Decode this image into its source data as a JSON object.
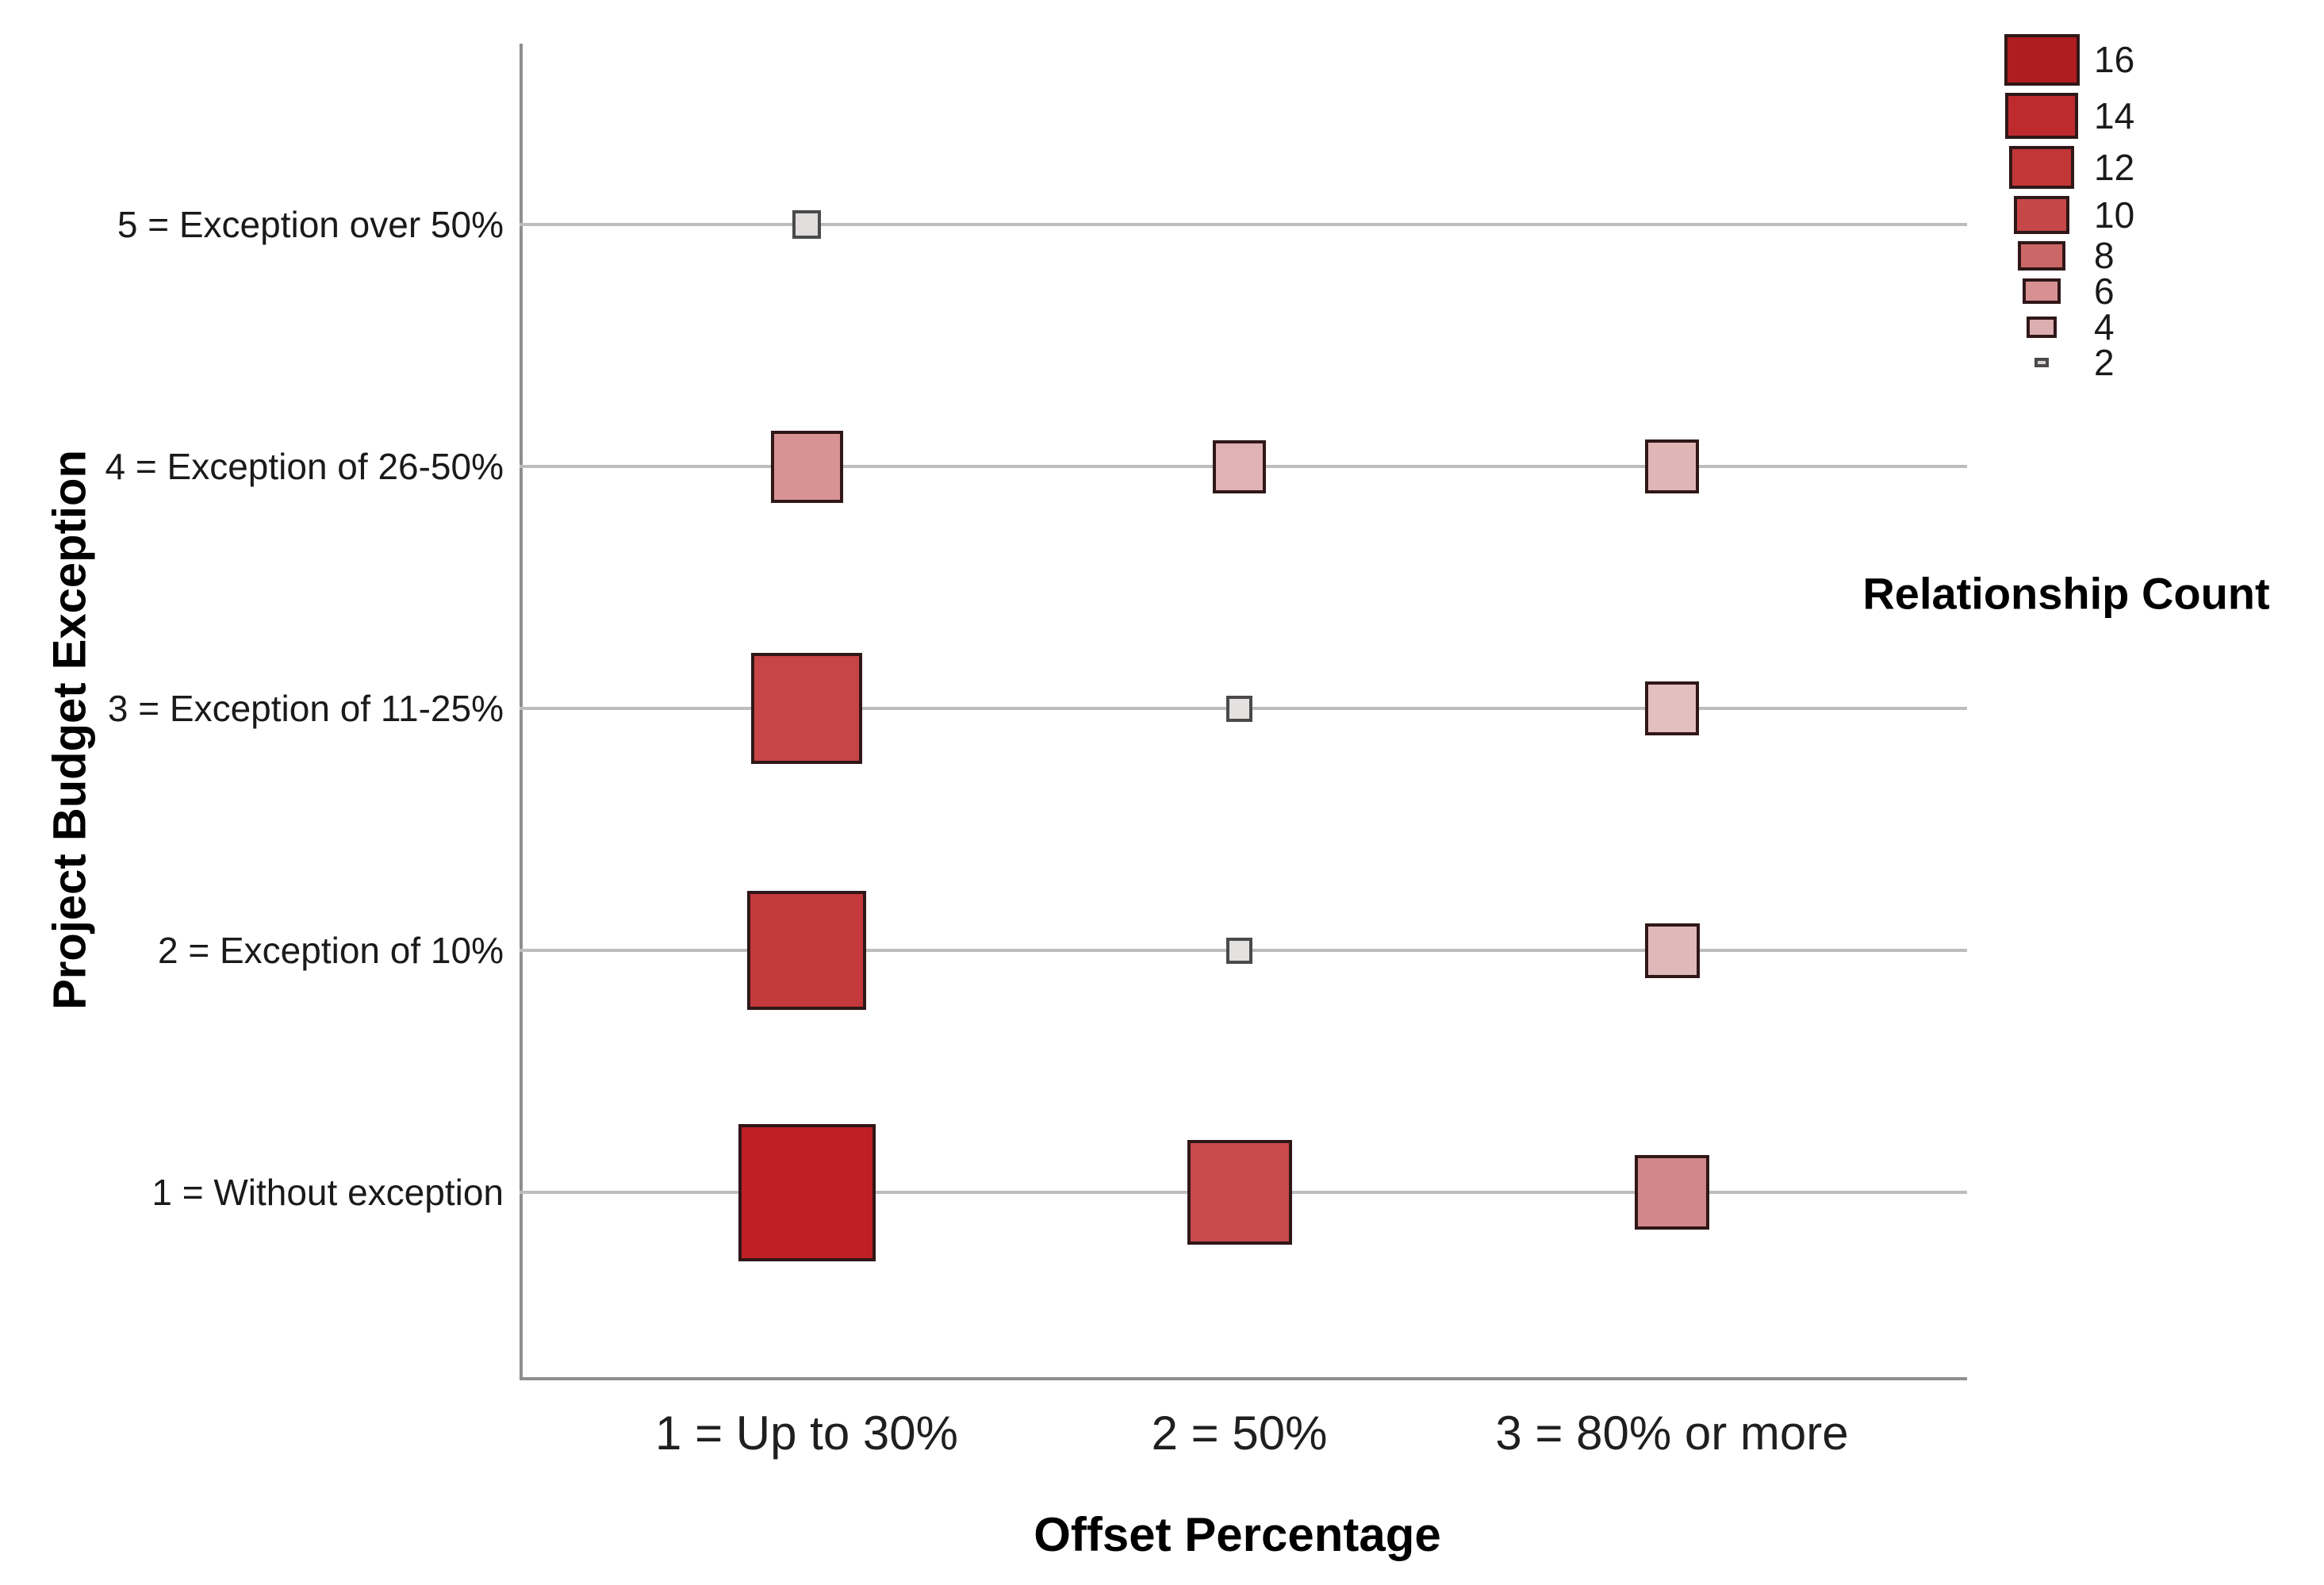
{
  "figure": {
    "background": "#ffffff",
    "axis_color": "#8f8f8f",
    "grid_color": "#bdbdbd",
    "marker_stroke": "#301718",
    "gray_marker_stroke": "#4a4a4a"
  },
  "chart_data": {
    "type": "scatter",
    "subtype": "categorical-bubble-squares",
    "title": "",
    "xlabel": "Offset Percentage",
    "ylabel": "Project Budget Exception",
    "grid": "horizontal",
    "legend_position": "top-right",
    "x_categories": [
      {
        "value": 1,
        "label": "1 = Up to 30%"
      },
      {
        "value": 2,
        "label": "2 = 50%"
      },
      {
        "value": 3,
        "label": "3 = 80% or more"
      }
    ],
    "y_categories": [
      {
        "value": 1,
        "label": "1 = Without exception"
      },
      {
        "value": 2,
        "label": "2 = Exception of 10%"
      },
      {
        "value": 3,
        "label": "3 = Exception of 11-25%"
      },
      {
        "value": 4,
        "label": "4 = Exception of 26-50%"
      },
      {
        "value": 5,
        "label": "5 = Exception over 50%"
      }
    ],
    "legend": {
      "title": "Relationship Count",
      "entries": [
        {
          "value": "16",
          "w": 95,
          "h": 65,
          "fill": "#AF1C22"
        },
        {
          "value": "14",
          "w": 92,
          "h": 58,
          "fill": "#BE2B2F"
        },
        {
          "value": "12",
          "w": 82,
          "h": 54,
          "fill": "#C23637"
        },
        {
          "value": "10",
          "w": 70,
          "h": 48,
          "fill": "#C64747"
        },
        {
          "value": "8",
          "w": 60,
          "h": 37,
          "fill": "#CC6768"
        },
        {
          "value": "6",
          "w": 48,
          "h": 32,
          "fill": "#D69091"
        },
        {
          "value": "4",
          "w": 38,
          "h": 27,
          "fill": "#DCAEB0"
        },
        {
          "value": "2",
          "w": 18,
          "h": 12,
          "fill": "#DCD3D3",
          "stroke": "#4a4a4a"
        }
      ]
    },
    "points": [
      {
        "x": 1,
        "y": 1,
        "count": 16,
        "size": 173,
        "fill": "#BF2026"
      },
      {
        "x": 2,
        "y": 1,
        "count": 12,
        "size": 132,
        "fill": "#CB4A4B"
      },
      {
        "x": 3,
        "y": 1,
        "count": 8,
        "size": 94,
        "fill": "#D28788"
      },
      {
        "x": 1,
        "y": 2,
        "count": 14,
        "size": 150,
        "fill": "#C4393B"
      },
      {
        "x": 2,
        "y": 2,
        "count": 2,
        "size": 33,
        "fill": "#E4E1E0",
        "stroke": "#4a4a4a"
      },
      {
        "x": 3,
        "y": 2,
        "count": 6,
        "size": 69,
        "fill": "#DFB9BA"
      },
      {
        "x": 1,
        "y": 3,
        "count": 13,
        "size": 140,
        "fill": "#C74546"
      },
      {
        "x": 2,
        "y": 3,
        "count": 2,
        "size": 33,
        "fill": "#E4E1E0",
        "stroke": "#4a4a4a"
      },
      {
        "x": 3,
        "y": 3,
        "count": 5,
        "size": 68,
        "fill": "#E3BFBF"
      },
      {
        "x": 1,
        "y": 4,
        "count": 7,
        "size": 91,
        "fill": "#D79394"
      },
      {
        "x": 2,
        "y": 4,
        "count": 5,
        "size": 67,
        "fill": "#DFB2B3"
      },
      {
        "x": 3,
        "y": 4,
        "count": 5,
        "size": 68,
        "fill": "#DFB5B6"
      },
      {
        "x": 1,
        "y": 5,
        "count": 2,
        "size": 36,
        "fill": "#E0DDDC",
        "stroke": "#4a4a4a"
      }
    ]
  }
}
